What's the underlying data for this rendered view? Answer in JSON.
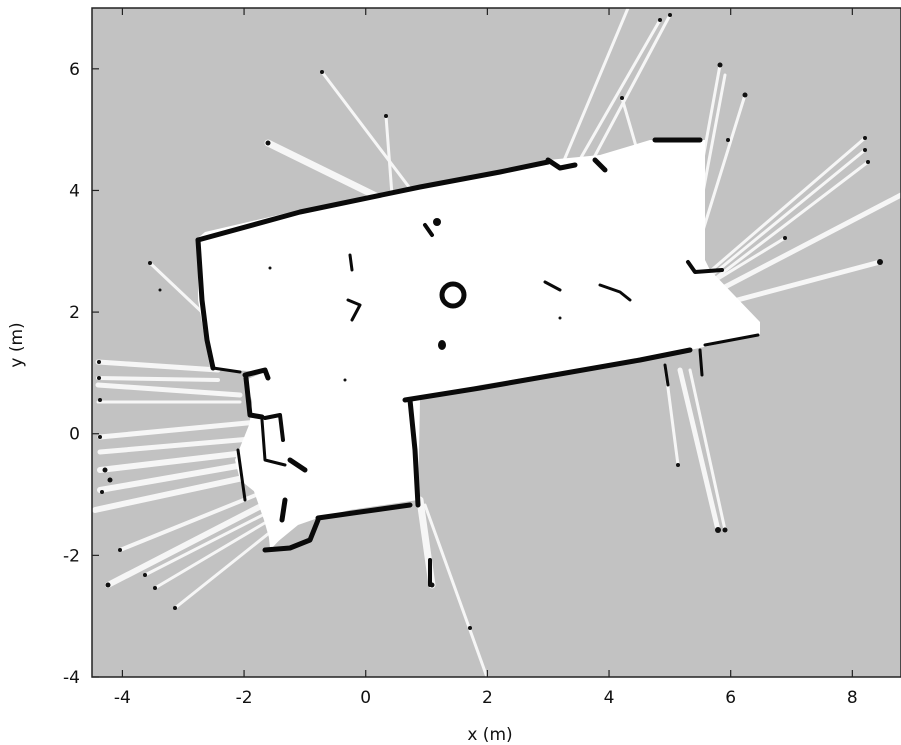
{
  "map": {
    "type": "occupancy-grid",
    "xlabel": "x (m)",
    "ylabel": "y (m)",
    "xlim": [
      -4.5,
      8.8
    ],
    "ylim": [
      -4.0,
      7.0
    ],
    "x_ticks": [
      "-4",
      "-2",
      "0",
      "2",
      "4",
      "6",
      "8"
    ],
    "y_ticks": [
      "-4",
      "-2",
      "0",
      "2",
      "4",
      "6"
    ],
    "x_tick_values": [
      -4,
      -2,
      0,
      2,
      4,
      6,
      8
    ],
    "y_tick_values": [
      -4,
      -2,
      0,
      2,
      4,
      6
    ],
    "colors": {
      "unknown": "#c2c2c2",
      "free": "#ffffff",
      "occupied": "#0a0a0a",
      "frame": "#222222"
    }
  }
}
